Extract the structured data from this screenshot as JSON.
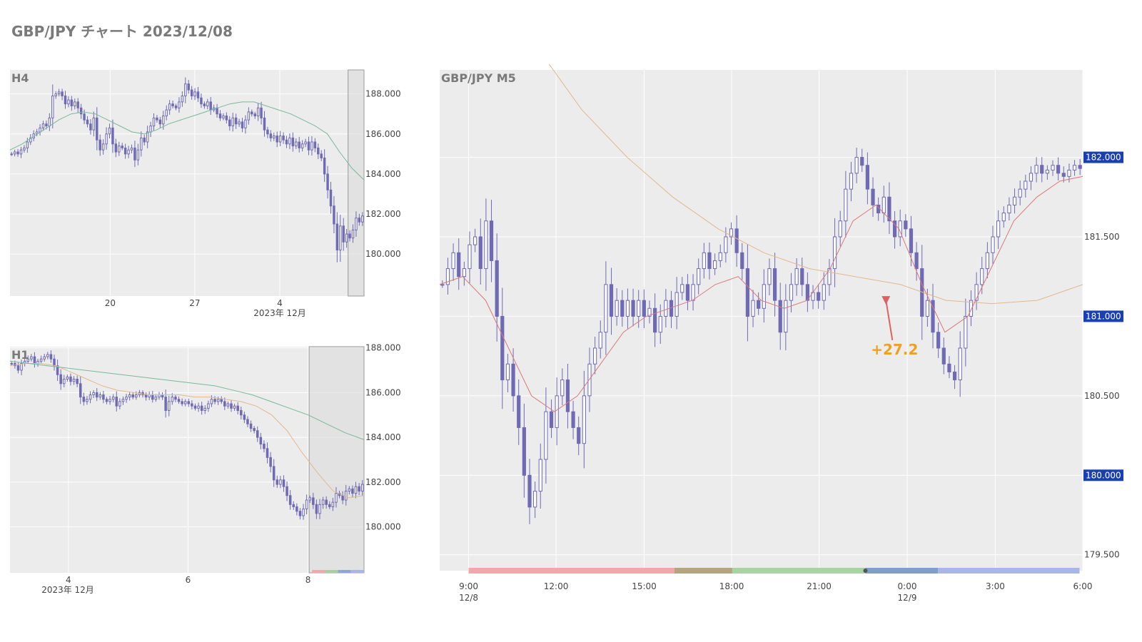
{
  "page_title": "GBP/JPY チャート 2023/12/08",
  "colors": {
    "plot_bg": "#ececec",
    "grid": "#ffffff",
    "candle": "#6f6ab3",
    "ma_short": "#d77a7a",
    "ma_mid": "#e0b98c",
    "ma_long": "#7ab89a",
    "entry_marker": "#e06060",
    "profit_label": "#f0a020",
    "price_badge": "#1a3fb0"
  },
  "chart_data": [
    {
      "id": "h4",
      "type": "candlestick",
      "label": "H4",
      "y_ticks": [
        "188.000",
        "186.000",
        "184.000",
        "182.000",
        "180.000"
      ],
      "y_tick_values": [
        188,
        186,
        184,
        182,
        180
      ],
      "ylim": [
        177.9,
        189.2
      ],
      "x_ticks": [
        "20",
        "27",
        "4"
      ],
      "x_sublabel": "2023年 12月",
      "closes": [
        185.0,
        185.1,
        185.0,
        185.2,
        185.3,
        185.6,
        185.8,
        186.0,
        186.1,
        186.3,
        186.5,
        186.4,
        186.8,
        187.9,
        188.0,
        188.1,
        187.9,
        187.5,
        187.7,
        187.4,
        187.6,
        187.3,
        187.0,
        186.7,
        186.5,
        186.2,
        186.8,
        185.7,
        185.2,
        185.5,
        186.0,
        186.3,
        185.5,
        185.1,
        185.4,
        185.3,
        185.0,
        185.2,
        185.3,
        184.7,
        185.2,
        185.8,
        185.6,
        186.1,
        186.4,
        186.8,
        186.7,
        186.5,
        186.9,
        187.2,
        187.5,
        187.4,
        187.3,
        187.6,
        187.9,
        188.5,
        188.2,
        187.9,
        188.1,
        187.8,
        187.5,
        187.4,
        187.6,
        187.2,
        187.3,
        187.0,
        186.8,
        186.9,
        186.7,
        186.4,
        186.8,
        186.5,
        186.6,
        186.3,
        186.7,
        187.1,
        187.0,
        186.9,
        187.3,
        186.8,
        186.2,
        186.0,
        185.8,
        185.9,
        185.6,
        185.9,
        185.7,
        185.5,
        185.8,
        185.4,
        185.6,
        185.3,
        185.5,
        185.6,
        185.2,
        185.6,
        185.3,
        185.0,
        184.8,
        184.0,
        183.2,
        182.4,
        181.5,
        180.2,
        181.4,
        180.6,
        181.0,
        180.8,
        181.2,
        181.8,
        181.6,
        181.9
      ],
      "ma_long": [
        185.2,
        185.5,
        185.9,
        186.3,
        186.7,
        187.0,
        187.1,
        187.0,
        186.7,
        186.4,
        186.1,
        186.0,
        186.2,
        186.5,
        186.7,
        186.9,
        187.1,
        187.3,
        187.5,
        187.6,
        187.6,
        187.4,
        187.2,
        187.0,
        186.7,
        186.4,
        186.0,
        185.1,
        184.3,
        183.7
      ],
      "highlight_from": 0.955
    },
    {
      "id": "h1",
      "type": "candlestick",
      "label": "H1",
      "y_ticks": [
        "188.000",
        "186.000",
        "184.000",
        "182.000",
        "180.000"
      ],
      "y_tick_values": [
        188,
        186,
        184,
        182,
        180
      ],
      "ylim": [
        177.95,
        188.05
      ],
      "x_ticks": [
        "4",
        "6",
        "8"
      ],
      "x_sublabel": "2023年 12月",
      "closes": [
        187.3,
        187.2,
        187.0,
        187.3,
        187.4,
        187.5,
        187.6,
        187.3,
        187.4,
        187.5,
        187.6,
        187.7,
        187.5,
        187.2,
        186.8,
        186.4,
        186.6,
        186.7,
        186.5,
        186.6,
        186.4,
        185.8,
        185.6,
        185.7,
        185.9,
        186.0,
        185.8,
        185.9,
        185.7,
        185.6,
        185.7,
        185.8,
        185.4,
        185.6,
        185.7,
        185.8,
        185.9,
        185.8,
        185.9,
        186.0,
        185.9,
        185.8,
        185.9,
        185.7,
        185.8,
        185.9,
        185.8,
        185.2,
        185.6,
        185.8,
        185.7,
        185.6,
        185.5,
        185.6,
        185.5,
        185.4,
        185.3,
        185.4,
        185.2,
        185.3,
        185.5,
        185.7,
        185.6,
        185.7,
        185.6,
        185.4,
        185.5,
        185.3,
        185.4,
        185.2,
        185.0,
        184.8,
        184.6,
        184.4,
        184.3,
        184.0,
        183.7,
        183.5,
        183.1,
        182.7,
        182.1,
        181.9,
        182.1,
        181.8,
        181.4,
        181.0,
        180.9,
        180.7,
        180.5,
        180.8,
        181.2,
        181.3,
        181.0,
        180.6,
        181.0,
        181.2,
        181.0,
        180.9,
        181.1,
        181.5,
        181.4,
        181.2,
        181.6,
        181.7,
        181.5,
        181.8,
        181.6,
        181.9
      ],
      "ma_mid": [
        187.2,
        187.3,
        187.3,
        187.2,
        186.9,
        186.6,
        186.3,
        186.1,
        186.0,
        185.9,
        185.9,
        185.9,
        185.8,
        185.8,
        185.7,
        185.6,
        185.4,
        185.0,
        184.3,
        183.3,
        182.4,
        181.6,
        181.3,
        181.4
      ],
      "ma_long": [
        187.4,
        187.3,
        187.2,
        187.1,
        187.0,
        186.9,
        186.8,
        186.7,
        186.6,
        186.5,
        186.4,
        186.3,
        186.1,
        185.9,
        185.6,
        185.3,
        185.0,
        184.6,
        184.2,
        183.9
      ],
      "highlight_from": 0.845,
      "session_colors": [
        "#f2a7aa",
        "#a8cfa0",
        "#8ea7d8",
        "#a9b6ea"
      ]
    },
    {
      "id": "m5",
      "type": "candlestick",
      "label": "GBP/JPY M5",
      "y_ticks": [
        "182.000",
        "181.500",
        "181.000",
        "180.500",
        "179.500"
      ],
      "y_tick_values": [
        182.0,
        181.5,
        181.0,
        180.5,
        179.5
      ],
      "badge_ticks": [
        "182.000",
        "181.000",
        "180.000"
      ],
      "badge_values": [
        182.0,
        181.0,
        180.0
      ],
      "ylim": [
        179.4,
        182.55
      ],
      "x_ticks": [
        "9:00",
        "12:00",
        "15:00",
        "18:00",
        "21:00",
        "0:00",
        "3:00",
        "6:00"
      ],
      "x_ticks_second": [
        "12/8",
        "",
        "",
        "",
        "",
        "12/9",
        "",
        ""
      ],
      "closes": [
        181.2,
        181.3,
        181.4,
        181.25,
        181.3,
        181.45,
        181.5,
        181.3,
        181.6,
        181.35,
        181.0,
        180.6,
        180.7,
        180.5,
        180.3,
        180.0,
        179.8,
        179.9,
        180.1,
        180.4,
        180.3,
        180.5,
        180.6,
        180.4,
        180.3,
        180.2,
        180.5,
        180.7,
        180.8,
        180.9,
        181.2,
        181.0,
        181.1,
        181.0,
        181.1,
        181.0,
        181.1,
        181.0,
        181.05,
        180.9,
        181.0,
        181.1,
        181.0,
        181.15,
        181.2,
        181.1,
        181.2,
        181.3,
        181.4,
        181.3,
        181.35,
        181.4,
        181.5,
        181.55,
        181.4,
        181.3,
        181.0,
        181.1,
        181.05,
        181.2,
        181.3,
        181.1,
        180.9,
        181.1,
        181.2,
        181.3,
        181.2,
        181.1,
        181.15,
        181.1,
        181.2,
        181.3,
        181.5,
        181.6,
        181.8,
        181.9,
        182.0,
        181.95,
        181.8,
        181.7,
        181.65,
        181.75,
        181.6,
        181.5,
        181.6,
        181.55,
        181.4,
        181.3,
        181.0,
        181.1,
        180.9,
        180.8,
        180.7,
        180.65,
        180.6,
        180.8,
        181.0,
        181.1,
        181.2,
        181.3,
        181.4,
        181.5,
        181.6,
        181.65,
        181.7,
        181.75,
        181.8,
        181.85,
        181.9,
        181.95,
        181.9,
        181.92,
        181.95,
        181.9,
        181.88,
        181.92,
        181.95,
        181.93
      ],
      "ma_short": [
        181.2,
        181.25,
        181.1,
        180.8,
        180.5,
        180.4,
        180.5,
        180.7,
        180.9,
        181.0,
        181.05,
        181.1,
        181.2,
        181.25,
        181.1,
        181.05,
        181.1,
        181.3,
        181.6,
        181.7,
        181.55,
        181.2,
        180.9,
        181.0,
        181.3,
        181.6,
        181.75,
        181.85,
        181.88
      ],
      "ma_long": [
        182.7,
        182.3,
        182.0,
        181.75,
        181.55,
        181.4,
        181.3,
        181.25,
        181.2,
        181.1,
        181.08,
        181.1,
        181.2
      ],
      "ma_long_start": 0.15,
      "trade_marker": {
        "x_frac": 0.694,
        "price": 181.1
      },
      "trade_line_end": {
        "x_frac": 0.704,
        "price": 180.85
      },
      "profit_label": "+27.2",
      "session_bands": [
        {
          "from": 0.045,
          "to": 0.365,
          "color": "#f2a7aa"
        },
        {
          "from": 0.365,
          "to": 0.455,
          "color": "#b5a57e"
        },
        {
          "from": 0.455,
          "to": 0.662,
          "color": "#a8d3a2"
        },
        {
          "from": 0.662,
          "to": 0.775,
          "color": "#7ea0c8"
        },
        {
          "from": 0.775,
          "to": 0.995,
          "color": "#a9b6ea"
        }
      ]
    }
  ]
}
